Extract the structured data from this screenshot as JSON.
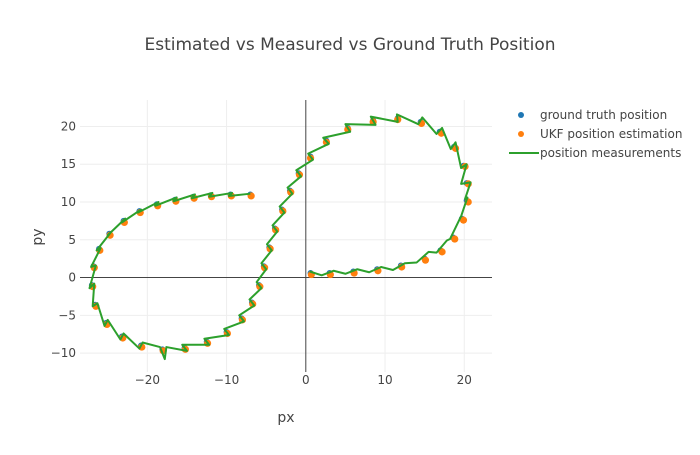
{
  "chart_data": {
    "type": "scatter",
    "title": "Estimated vs Measured vs Ground Truth Position",
    "xlabel": "px",
    "ylabel": "py",
    "xlim": [
      -28.5,
      23.5
    ],
    "ylim": [
      -12.5,
      23.5
    ],
    "xticks": [
      -20,
      -10,
      0,
      10,
      20
    ],
    "yticks": [
      -10,
      -5,
      0,
      5,
      10,
      15,
      20
    ],
    "grid": true,
    "zero_lines": true,
    "legend_position": "top-right",
    "series": [
      {
        "name": "ground truth position",
        "mode": "markers",
        "color": "#1f77b4",
        "points": [
          [
            0.6,
            0.6
          ],
          [
            3,
            0.6
          ],
          [
            6,
            0.8
          ],
          [
            9,
            1.1
          ],
          [
            12,
            1.6
          ],
          [
            15,
            2.5
          ],
          [
            17,
            3.6
          ],
          [
            18.6,
            5.3
          ],
          [
            19.7,
            7.8
          ],
          [
            20.3,
            10.2
          ],
          [
            20.3,
            12.5
          ],
          [
            19.9,
            14.8
          ],
          [
            18.7,
            17.3
          ],
          [
            16.9,
            19.3
          ],
          [
            14.5,
            20.6
          ],
          [
            11.6,
            21.1
          ],
          [
            8.5,
            20.8
          ],
          [
            5.3,
            19.8
          ],
          [
            2.6,
            18.1
          ],
          [
            0.6,
            16.0
          ],
          [
            -0.9,
            13.8
          ],
          [
            -2.0,
            11.5
          ],
          [
            -3.0,
            9.0
          ],
          [
            -3.9,
            6.5
          ],
          [
            -4.6,
            4.0
          ],
          [
            -5.3,
            1.5
          ],
          [
            -5.9,
            -1.0
          ],
          [
            -6.8,
            -3.3
          ],
          [
            -8.1,
            -5.4
          ],
          [
            -10,
            -7.2
          ],
          [
            -12.5,
            -8.5
          ],
          [
            -15.3,
            -9.3
          ],
          [
            -18.1,
            -9.5
          ],
          [
            -20.8,
            -9.0
          ],
          [
            -23.2,
            -7.8
          ],
          [
            -25.2,
            -6.0
          ],
          [
            -26.6,
            -3.6
          ],
          [
            -27.0,
            -1.0
          ],
          [
            -26.8,
            1.5
          ],
          [
            -26.1,
            3.8
          ],
          [
            -24.8,
            5.8
          ],
          [
            -23.0,
            7.5
          ],
          [
            -21.0,
            8.8
          ],
          [
            -18.8,
            9.7
          ],
          [
            -16.5,
            10.3
          ],
          [
            -14.2,
            10.7
          ],
          [
            -12,
            10.9
          ],
          [
            -9.5,
            11.0
          ],
          [
            -7.0,
            11.0
          ]
        ]
      },
      {
        "name": "UKF position estimation",
        "mode": "markers",
        "color": "#ff7f0e",
        "points": [
          [
            0.7,
            0.4
          ],
          [
            3.1,
            0.4
          ],
          [
            6.1,
            0.6
          ],
          [
            9.1,
            0.9
          ],
          [
            12.1,
            1.4
          ],
          [
            15.1,
            2.3
          ],
          [
            17.2,
            3.4
          ],
          [
            18.8,
            5.1
          ],
          [
            19.9,
            7.6
          ],
          [
            20.5,
            10.0
          ],
          [
            20.5,
            12.4
          ],
          [
            20.1,
            14.7
          ],
          [
            18.9,
            17.1
          ],
          [
            17.1,
            19.1
          ],
          [
            14.6,
            20.4
          ],
          [
            11.6,
            20.9
          ],
          [
            8.5,
            20.6
          ],
          [
            5.3,
            19.6
          ],
          [
            2.6,
            17.9
          ],
          [
            0.6,
            15.8
          ],
          [
            -0.8,
            13.6
          ],
          [
            -1.9,
            11.3
          ],
          [
            -2.9,
            8.8
          ],
          [
            -3.8,
            6.3
          ],
          [
            -4.5,
            3.8
          ],
          [
            -5.2,
            1.3
          ],
          [
            -5.8,
            -1.2
          ],
          [
            -6.7,
            -3.5
          ],
          [
            -8.0,
            -5.6
          ],
          [
            -9.9,
            -7.4
          ],
          [
            -12.4,
            -8.7
          ],
          [
            -15.2,
            -9.5
          ],
          [
            -18.0,
            -9.7
          ],
          [
            -20.7,
            -9.2
          ],
          [
            -23.1,
            -8.0
          ],
          [
            -25.1,
            -6.2
          ],
          [
            -26.5,
            -3.8
          ],
          [
            -26.9,
            -1.2
          ],
          [
            -26.7,
            1.3
          ],
          [
            -26.0,
            3.6
          ],
          [
            -24.7,
            5.6
          ],
          [
            -22.9,
            7.3
          ],
          [
            -20.9,
            8.6
          ],
          [
            -18.7,
            9.5
          ],
          [
            -16.4,
            10.1
          ],
          [
            -14.1,
            10.5
          ],
          [
            -11.9,
            10.7
          ],
          [
            -9.4,
            10.8
          ],
          [
            -6.9,
            10.8
          ]
        ]
      },
      {
        "name": "position measurements",
        "mode": "lines",
        "color": "#2ca02c",
        "points": [
          [
            0.5,
            0.8
          ],
          [
            2,
            0.3
          ],
          [
            3.5,
            0.9
          ],
          [
            5,
            0.5
          ],
          [
            6.5,
            1.1
          ],
          [
            8,
            0.7
          ],
          [
            9.5,
            1.4
          ],
          [
            11,
            1.0
          ],
          [
            12.5,
            1.9
          ],
          [
            14,
            2.0
          ],
          [
            15.5,
            3.4
          ],
          [
            16.5,
            3.3
          ],
          [
            17.8,
            4.9
          ],
          [
            18.2,
            5.1
          ],
          [
            19.5,
            7.9
          ],
          [
            19.6,
            8.1
          ],
          [
            20.4,
            10.6
          ],
          [
            20.1,
            10.4
          ],
          [
            20.8,
            12.6
          ],
          [
            19.6,
            12.4
          ],
          [
            20.3,
            15.0
          ],
          [
            19.6,
            14.5
          ],
          [
            18.9,
            17.9
          ],
          [
            18.3,
            17.0
          ],
          [
            17.2,
            19.8
          ],
          [
            16.5,
            19.0
          ],
          [
            14.7,
            21.2
          ],
          [
            14.2,
            20.3
          ],
          [
            11.5,
            21.6
          ],
          [
            11.6,
            20.6
          ],
          [
            8.2,
            21.3
          ],
          [
            8.8,
            20.2
          ],
          [
            5.0,
            20.3
          ],
          [
            5.6,
            19.3
          ],
          [
            2.2,
            18.5
          ],
          [
            2.9,
            17.7
          ],
          [
            0.3,
            16.4
          ],
          [
            0.9,
            15.6
          ],
          [
            -1.2,
            14.2
          ],
          [
            -0.6,
            13.4
          ],
          [
            -2.3,
            11.9
          ],
          [
            -1.7,
            11.1
          ],
          [
            -3.3,
            9.4
          ],
          [
            -2.7,
            8.6
          ],
          [
            -4.2,
            6.9
          ],
          [
            -3.6,
            6.1
          ],
          [
            -4.9,
            4.4
          ],
          [
            -4.3,
            3.6
          ],
          [
            -5.6,
            1.9
          ],
          [
            -5.0,
            1.1
          ],
          [
            -6.2,
            -0.6
          ],
          [
            -5.6,
            -1.4
          ],
          [
            -7.1,
            -2.9
          ],
          [
            -6.5,
            -3.7
          ],
          [
            -8.4,
            -5.0
          ],
          [
            -7.8,
            -5.8
          ],
          [
            -10.3,
            -6.8
          ],
          [
            -9.7,
            -7.6
          ],
          [
            -12.8,
            -8.1
          ],
          [
            -12.2,
            -8.9
          ],
          [
            -15.6,
            -8.9
          ],
          [
            -15.0,
            -9.7
          ],
          [
            -17.6,
            -9.2
          ],
          [
            -17.8,
            -10.8
          ],
          [
            -18.4,
            -9.2
          ],
          [
            -20.6,
            -8.6
          ],
          [
            -21.0,
            -9.4
          ],
          [
            -23.0,
            -7.4
          ],
          [
            -23.4,
            -8.2
          ],
          [
            -25.0,
            -5.6
          ],
          [
            -25.4,
            -6.4
          ],
          [
            -26.3,
            -3.4
          ],
          [
            -26.9,
            -3.8
          ],
          [
            -26.7,
            -0.8
          ],
          [
            -27.3,
            -1.4
          ],
          [
            -26.5,
            1.6
          ],
          [
            -27.1,
            1.4
          ],
          [
            -25.9,
            3.9
          ],
          [
            -26.4,
            3.6
          ],
          [
            -24.6,
            6.0
          ],
          [
            -25.0,
            5.6
          ],
          [
            -22.8,
            7.8
          ],
          [
            -23.2,
            7.3
          ],
          [
            -20.8,
            9.0
          ],
          [
            -21.2,
            8.6
          ],
          [
            -18.6,
            10.0
          ],
          [
            -19.0,
            9.5
          ],
          [
            -16.3,
            10.6
          ],
          [
            -16.7,
            10.1
          ],
          [
            -14.0,
            11.0
          ],
          [
            -14.4,
            10.5
          ],
          [
            -11.8,
            11.2
          ],
          [
            -12.2,
            10.7
          ],
          [
            -9.3,
            11.2
          ],
          [
            -9.7,
            10.8
          ],
          [
            -7.0,
            11.1
          ]
        ]
      }
    ]
  }
}
